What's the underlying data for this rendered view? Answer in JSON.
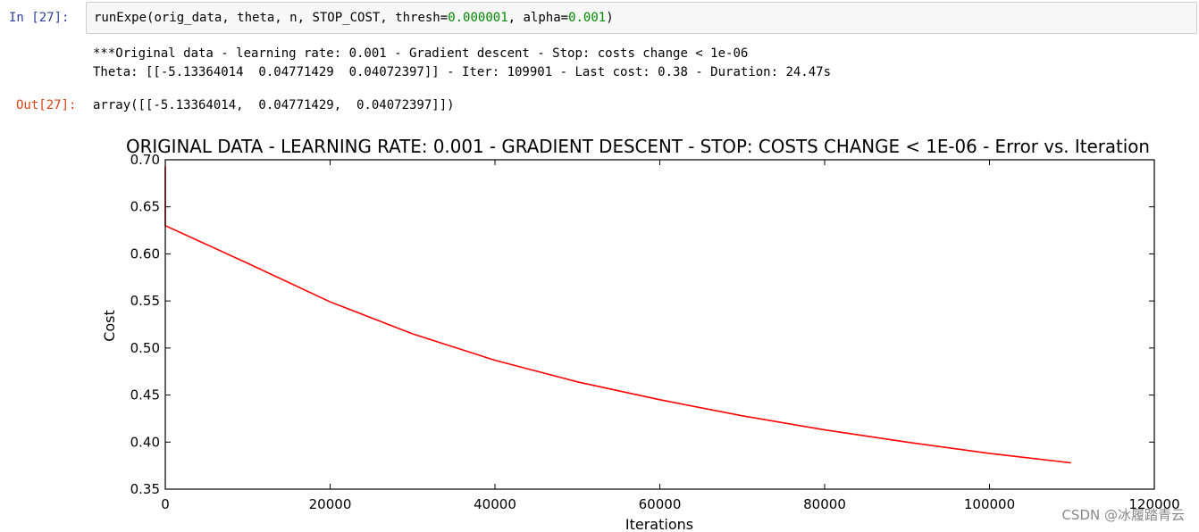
{
  "cell": {
    "in_prompt": "In  [27]:",
    "out_prompt": "Out[27]:",
    "code": {
      "func": "runExpe",
      "args_1": "(orig_data, theta, n, STOP_COST, thresh",
      "thresh_value": "0.000001",
      "args_2": ", alpha",
      "alpha_value": "0.001",
      "close": ")",
      "eq": "="
    },
    "stdout": [
      "***Original data - learning rate: 0.001 - Gradient descent - Stop: costs change < 1e-06",
      "Theta: [[-5.13364014  0.04771429  0.04072397]] - Iter: 109901 - Last cost: 0.38 - Duration: 24.47s"
    ],
    "result": "array([[-5.13364014,  0.04771429,  0.04072397]])"
  },
  "chart_data": {
    "type": "line",
    "title": "ORIGINAL DATA - LEARNING RATE: 0.001 - GRADIENT DESCENT - STOP: COSTS CHANGE < 1E-06 - Error vs. Iteration",
    "xlabel": "Iterations",
    "ylabel": "Cost",
    "xlim": [
      0,
      120000
    ],
    "ylim": [
      0.35,
      0.7
    ],
    "x_ticks": [
      "0",
      "20000",
      "40000",
      "60000",
      "80000",
      "100000",
      "120000"
    ],
    "y_ticks": [
      "0.35",
      "0.40",
      "0.45",
      "0.50",
      "0.55",
      "0.60",
      "0.65",
      "0.70"
    ],
    "grid": false,
    "series": [
      {
        "color": "#ff0000",
        "x": [
          0,
          0,
          10000,
          20000,
          30000,
          40000,
          50000,
          60000,
          70000,
          80000,
          90000,
          100000,
          109901
        ],
        "y": [
          0.693,
          0.63,
          0.59,
          0.549,
          0.515,
          0.487,
          0.464,
          0.445,
          0.428,
          0.413,
          0.4,
          0.388,
          0.378
        ]
      }
    ]
  },
  "watermark": "CSDN @冰履踏青云"
}
